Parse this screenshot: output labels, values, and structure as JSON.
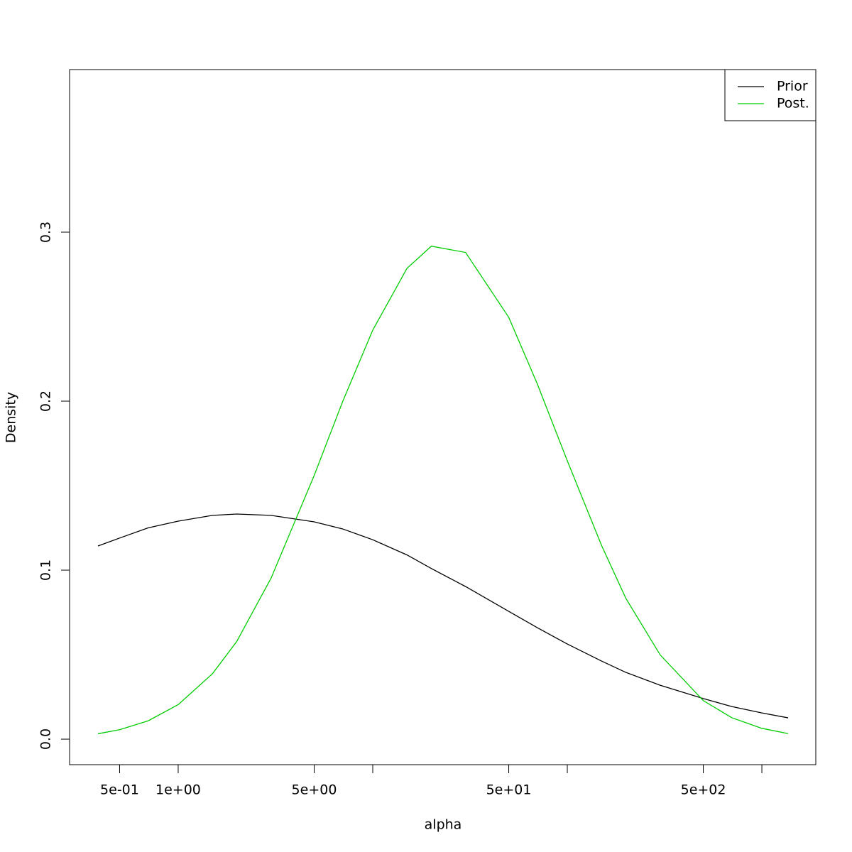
{
  "chart_data": {
    "type": "line",
    "x_label": "alpha",
    "y_label": "Density",
    "log_x": true,
    "grid": false,
    "legend": "topright",
    "x": [
      0.387,
      0.5,
      0.7,
      1,
      1.5,
      2,
      3,
      5,
      7,
      10,
      15,
      20,
      30,
      50,
      70,
      100,
      150,
      200,
      300,
      500,
      700,
      1000,
      1365
    ],
    "series": [
      {
        "name": "Prior",
        "color": "#000000",
        "values": [
          0.1143,
          0.119,
          0.125,
          0.129,
          0.1324,
          0.1332,
          0.1324,
          0.1286,
          0.1244,
          0.118,
          0.109,
          0.101,
          0.0903,
          0.0756,
          0.066,
          0.0563,
          0.0462,
          0.0395,
          0.0319,
          0.024,
          0.0193,
          0.0155,
          0.0126
        ]
      },
      {
        "name": "Post.",
        "color": "#00cd00",
        "values": [
          0.0032,
          0.0056,
          0.0108,
          0.0204,
          0.0387,
          0.0578,
          0.0952,
          0.156,
          0.1997,
          0.242,
          0.2786,
          0.2917,
          0.288,
          0.2496,
          0.2104,
          0.1647,
          0.1146,
          0.0833,
          0.0499,
          0.0228,
          0.0127,
          0.0064,
          0.0033
        ]
      }
    ],
    "xlim": [
      0.2766,
      1893
    ],
    "xticks": [
      {
        "value": 0.5,
        "label": "5e-01"
      },
      {
        "value": 1,
        "label": "1e+00"
      },
      {
        "value": 5,
        "label": "5e+00"
      },
      {
        "value": 10,
        "label": null
      },
      {
        "value": 50,
        "label": "5e+01"
      },
      {
        "value": 100,
        "label": null
      },
      {
        "value": 500,
        "label": "5e+02"
      },
      {
        "value": 1000,
        "label": null
      }
    ],
    "ylim": [
      -0.0151,
      0.3962
    ],
    "yticks": [
      {
        "value": 0,
        "label": "0.0"
      },
      0.1,
      0.2,
      0.3
    ]
  }
}
